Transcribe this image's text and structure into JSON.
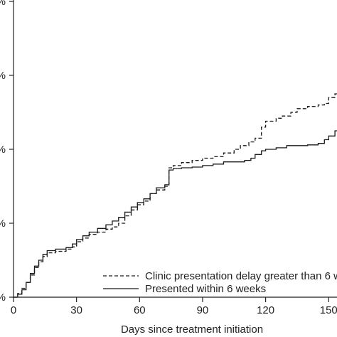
{
  "chart_data": {
    "type": "line",
    "title": "",
    "xlabel": "Days since treatment initiation",
    "ylabel": "",
    "xlim": [
      0,
      165
    ],
    "ylim": [
      0,
      0.4
    ],
    "x_ticks": [
      0,
      30,
      60,
      90,
      120,
      150
    ],
    "y_ticks": [
      {
        "value": 0.0,
        "label": "%"
      },
      {
        "value": 0.1,
        "label": "%"
      },
      {
        "value": 0.2,
        "label": "%"
      },
      {
        "value": 0.3,
        "label": "%"
      },
      {
        "value": 0.4,
        "label": "%"
      }
    ],
    "step": true,
    "legend_position": "bottom-right",
    "series": [
      {
        "name": "Clinic presentation delay greater than 6 w",
        "line_style": "dashed",
        "color": "#1a1a1a",
        "points": [
          [
            0,
            0.0
          ],
          [
            2,
            0.005
          ],
          [
            4,
            0.012
          ],
          [
            6,
            0.02
          ],
          [
            8,
            0.03
          ],
          [
            10,
            0.04
          ],
          [
            12,
            0.048
          ],
          [
            14,
            0.055
          ],
          [
            16,
            0.06
          ],
          [
            20,
            0.062
          ],
          [
            25,
            0.065
          ],
          [
            28,
            0.068
          ],
          [
            30,
            0.075
          ],
          [
            33,
            0.08
          ],
          [
            36,
            0.085
          ],
          [
            40,
            0.088
          ],
          [
            44,
            0.092
          ],
          [
            47,
            0.095
          ],
          [
            50,
            0.1
          ],
          [
            53,
            0.11
          ],
          [
            56,
            0.118
          ],
          [
            59,
            0.125
          ],
          [
            62,
            0.13
          ],
          [
            65,
            0.14
          ],
          [
            68,
            0.145
          ],
          [
            72,
            0.15
          ],
          [
            74,
            0.175
          ],
          [
            76,
            0.178
          ],
          [
            80,
            0.182
          ],
          [
            85,
            0.185
          ],
          [
            90,
            0.188
          ],
          [
            95,
            0.19
          ],
          [
            100,
            0.195
          ],
          [
            105,
            0.2
          ],
          [
            108,
            0.205
          ],
          [
            112,
            0.21
          ],
          [
            115,
            0.215
          ],
          [
            118,
            0.23
          ],
          [
            120,
            0.238
          ],
          [
            125,
            0.242
          ],
          [
            128,
            0.245
          ],
          [
            132,
            0.25
          ],
          [
            135,
            0.255
          ],
          [
            140,
            0.258
          ],
          [
            145,
            0.26
          ],
          [
            148,
            0.262
          ],
          [
            150,
            0.27
          ],
          [
            153,
            0.275
          ],
          [
            157,
            0.275
          ],
          [
            165,
            0.275
          ]
        ]
      },
      {
        "name": "Presented within 6 weeks",
        "line_style": "solid",
        "color": "#1a1a1a",
        "points": [
          [
            0,
            0.0
          ],
          [
            2,
            0.004
          ],
          [
            4,
            0.01
          ],
          [
            6,
            0.02
          ],
          [
            8,
            0.032
          ],
          [
            10,
            0.042
          ],
          [
            12,
            0.05
          ],
          [
            14,
            0.058
          ],
          [
            16,
            0.063
          ],
          [
            20,
            0.065
          ],
          [
            25,
            0.067
          ],
          [
            28,
            0.072
          ],
          [
            30,
            0.078
          ],
          [
            33,
            0.083
          ],
          [
            36,
            0.088
          ],
          [
            40,
            0.093
          ],
          [
            44,
            0.098
          ],
          [
            47,
            0.103
          ],
          [
            50,
            0.108
          ],
          [
            53,
            0.115
          ],
          [
            56,
            0.122
          ],
          [
            59,
            0.128
          ],
          [
            62,
            0.133
          ],
          [
            65,
            0.14
          ],
          [
            68,
            0.148
          ],
          [
            72,
            0.152
          ],
          [
            74,
            0.172
          ],
          [
            76,
            0.174
          ],
          [
            80,
            0.175
          ],
          [
            85,
            0.176
          ],
          [
            90,
            0.178
          ],
          [
            95,
            0.18
          ],
          [
            100,
            0.183
          ],
          [
            105,
            0.183
          ],
          [
            110,
            0.185
          ],
          [
            113,
            0.188
          ],
          [
            115,
            0.193
          ],
          [
            118,
            0.198
          ],
          [
            120,
            0.2
          ],
          [
            125,
            0.202
          ],
          [
            130,
            0.205
          ],
          [
            135,
            0.205
          ],
          [
            140,
            0.206
          ],
          [
            145,
            0.208
          ],
          [
            148,
            0.213
          ],
          [
            150,
            0.218
          ],
          [
            153,
            0.225
          ],
          [
            157,
            0.227
          ],
          [
            163,
            0.232
          ],
          [
            165,
            0.235
          ]
        ]
      }
    ]
  }
}
